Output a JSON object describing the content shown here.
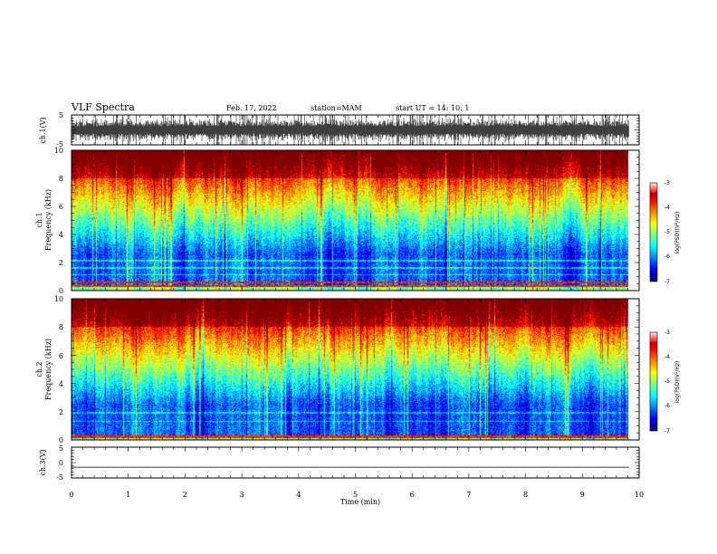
{
  "header": {
    "title": "VLF Spectra",
    "date": "Feb. 17, 2022",
    "station": "station=MAM",
    "start": "start  UT  =   14: 10: 1"
  },
  "chart_data": [
    {
      "type": "line",
      "panel": "ch1-waveform",
      "ylabel": "ch.1(V)",
      "ylim": [
        -5,
        5
      ],
      "yticks": [
        "5",
        "-5"
      ],
      "xlim": [
        0,
        10
      ],
      "signal_end_min": 9.82
    },
    {
      "type": "heatmap",
      "panel": "ch1-spectrogram",
      "ylabel": "ch.1\nFrequency (kHz)",
      "ylim": [
        0,
        10
      ],
      "yticks": [
        "0",
        "2",
        "4",
        "6",
        "8",
        "10"
      ],
      "xlim": [
        0,
        10
      ],
      "signal_end_min": 9.82,
      "colorbar": {
        "label": "log(PSD)(V²/Hz)",
        "range": [
          -7,
          -3
        ],
        "ticks": [
          "-3",
          "-4",
          "-5",
          "-6",
          "-7"
        ]
      },
      "hum_lines_khz": [
        0.3,
        0.55
      ]
    },
    {
      "type": "heatmap",
      "panel": "ch2-spectrogram",
      "ylabel": "ch.2\nFrequency (kHz)",
      "ylim": [
        0,
        10
      ],
      "yticks": [
        "0",
        "2",
        "4",
        "6",
        "8",
        "10"
      ],
      "xlim": [
        0,
        10
      ],
      "signal_end_min": 9.82,
      "colorbar": {
        "label": "log(PSD)(V²/Hz)",
        "range": [
          -7,
          -3
        ],
        "ticks": [
          "-3",
          "-4",
          "-5",
          "-6",
          "-7"
        ]
      },
      "hum_lines_khz": [
        0.2
      ]
    },
    {
      "type": "line",
      "panel": "ch3-waveform",
      "ylabel": "ch.3(V)",
      "ylim": [
        -5,
        5
      ],
      "yticks": [
        "5",
        "0",
        "-5"
      ],
      "xlim": [
        0,
        10
      ],
      "constant_value": -1.5,
      "xlabel": "Time (min)",
      "xticks": [
        "0",
        "1",
        "2",
        "3",
        "4",
        "5",
        "6",
        "7",
        "8",
        "9",
        "10"
      ]
    }
  ]
}
